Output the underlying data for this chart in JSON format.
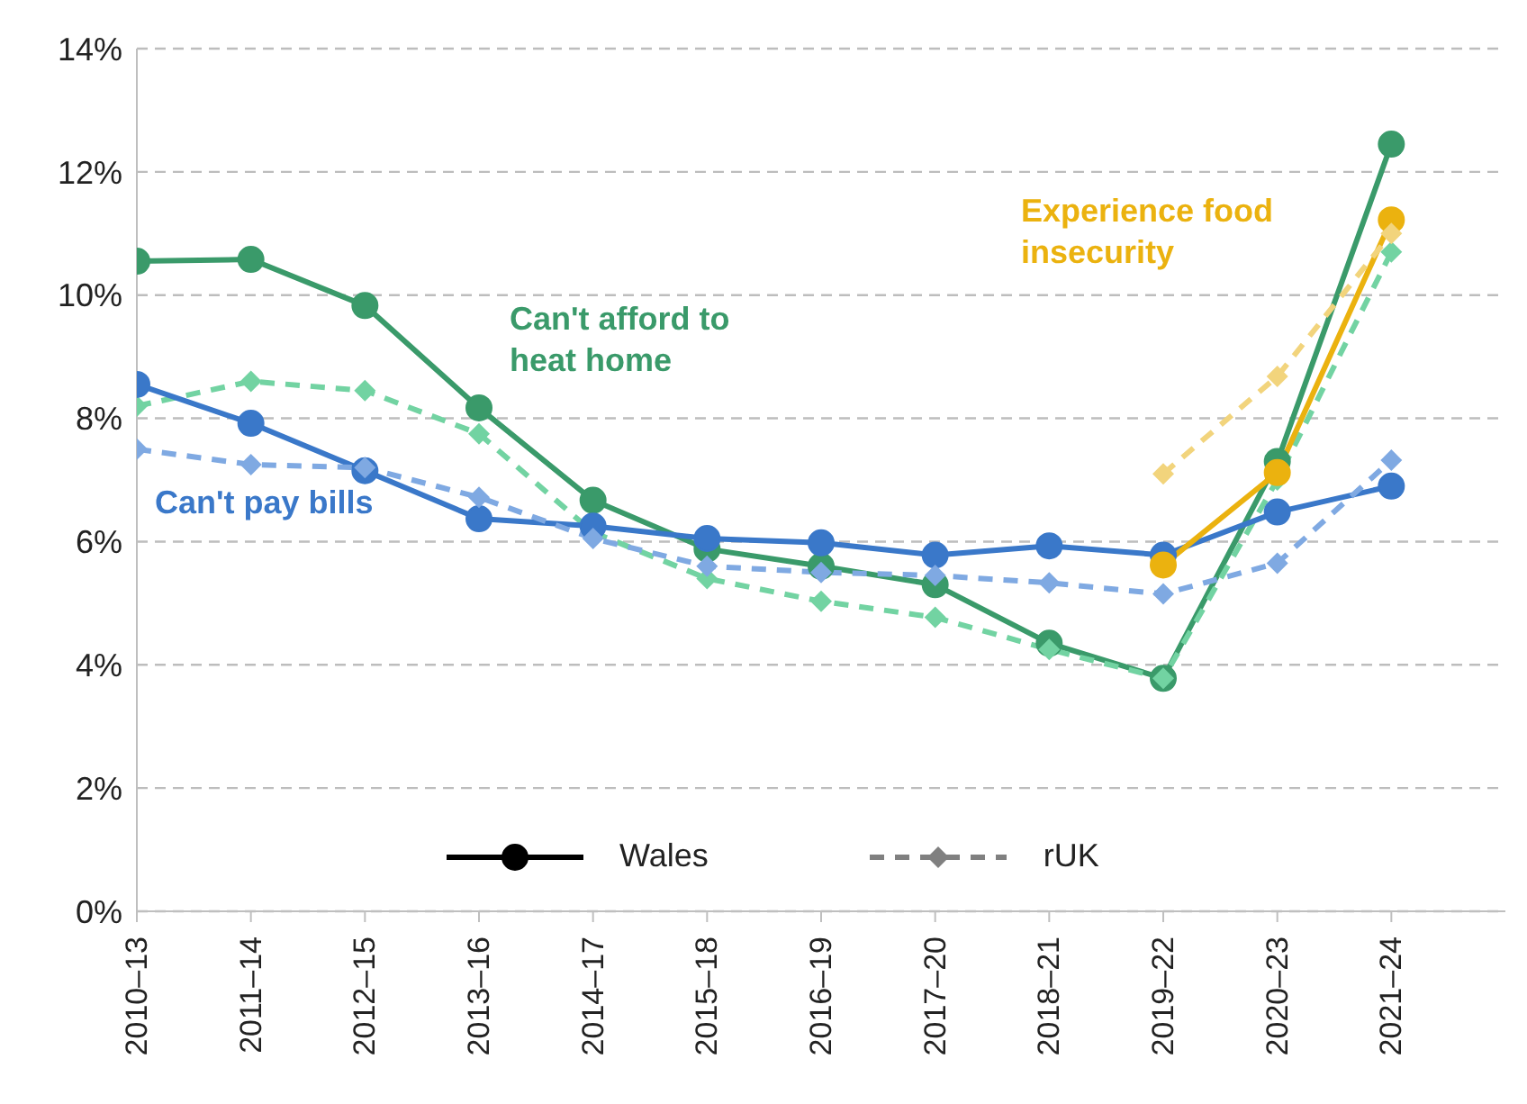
{
  "chart_data": {
    "type": "line",
    "categories": [
      "2010–13",
      "2011–14",
      "2012–15",
      "2013–16",
      "2014–17",
      "2015–18",
      "2016–19",
      "2017–20",
      "2018–21",
      "2019–22",
      "2020–23",
      "2021–24"
    ],
    "series": [
      {
        "name": "Can't afford to heat home",
        "color": "#3a9a6a",
        "line_style": "solid",
        "marker": "circle",
        "values": [
          10.55,
          10.58,
          9.83,
          8.17,
          6.67,
          5.88,
          5.6,
          5.3,
          4.35,
          3.78,
          7.3,
          12.45
        ]
      },
      {
        "color": "#72d3a2",
        "line_style": "dashed",
        "marker": "diamond",
        "values": [
          8.2,
          8.6,
          8.45,
          7.75,
          6.15,
          5.4,
          5.03,
          4.77,
          4.25,
          3.78,
          7.0,
          10.7
        ]
      },
      {
        "name": "Can't pay bills",
        "color": "#3a78c9",
        "line_style": "solid",
        "marker": "circle",
        "values": [
          8.55,
          7.92,
          7.15,
          6.37,
          6.25,
          6.05,
          5.98,
          5.78,
          5.93,
          5.78,
          6.48,
          6.9
        ]
      },
      {
        "color": "#7fa9e2",
        "line_style": "dashed",
        "marker": "diamond",
        "values": [
          7.5,
          7.25,
          7.2,
          6.72,
          6.05,
          5.6,
          5.5,
          5.45,
          5.33,
          5.15,
          5.65,
          7.32
        ]
      },
      {
        "name": "Experience food insecurity",
        "color": "#ebb20f",
        "line_style": "solid",
        "marker": "circle",
        "values": [
          null,
          null,
          null,
          null,
          null,
          null,
          null,
          null,
          null,
          5.62,
          7.12,
          11.22
        ]
      },
      {
        "color": "#f2d47c",
        "line_style": "dashed",
        "marker": "diamond",
        "values": [
          null,
          null,
          null,
          null,
          null,
          null,
          null,
          null,
          null,
          7.1,
          8.68,
          11.0
        ]
      },
      {
        "name": "Wales",
        "color": "#000000",
        "line_style": "solid",
        "marker": "circle",
        "values": [
          null,
          null,
          null,
          null,
          null,
          null,
          null,
          null,
          null,
          null,
          null,
          null
        ]
      },
      {
        "name": "rUK",
        "color": "#808080",
        "line_style": "dashed",
        "marker": "diamond",
        "values": [
          null,
          null,
          null,
          null,
          null,
          null,
          null,
          null,
          null,
          null,
          null,
          null
        ]
      }
    ],
    "ylim": [
      0,
      14
    ],
    "yticks": [
      {
        "value": 0,
        "label": "0%"
      },
      {
        "value": 2,
        "label": "2%"
      },
      {
        "value": 4,
        "label": "4%"
      },
      {
        "value": 6,
        "label": "6%"
      },
      {
        "value": 8,
        "label": "8%"
      },
      {
        "value": 10,
        "label": "10%"
      },
      {
        "value": 12,
        "label": "12%"
      },
      {
        "value": 14,
        "label": "14%"
      }
    ],
    "grid": "y",
    "legend": "bottom"
  }
}
